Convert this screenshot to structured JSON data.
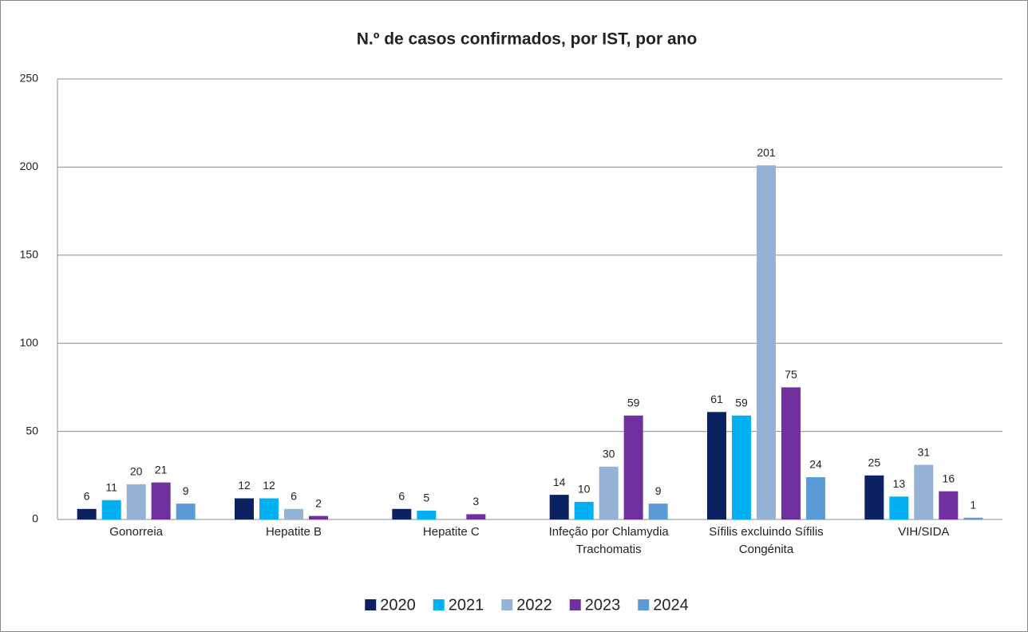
{
  "chart_data": {
    "type": "bar",
    "title": "N.º de casos confirmados, por IST, por ano",
    "categories": [
      "Gonorreia",
      "Hepatite B",
      "Hepatite C",
      "Infeção por Chlamydia Trachomatis",
      "Sífilis excluindo Sífilis Congénita",
      "VIH/SIDA"
    ],
    "series": [
      {
        "name": "2020",
        "color": "#0c2160",
        "values": [
          6,
          12,
          6,
          14,
          61,
          25
        ]
      },
      {
        "name": "2021",
        "color": "#00b0f0",
        "values": [
          11,
          12,
          5,
          10,
          59,
          13
        ]
      },
      {
        "name": "2022",
        "color": "#95b3d7",
        "values": [
          20,
          6,
          null,
          30,
          201,
          31
        ]
      },
      {
        "name": "2023",
        "color": "#7030a0",
        "values": [
          21,
          2,
          3,
          59,
          75,
          16
        ]
      },
      {
        "name": "2024",
        "color": "#5b9bd5",
        "values": [
          9,
          null,
          null,
          9,
          24,
          1
        ]
      }
    ],
    "ylim": [
      0,
      250
    ],
    "yticks": [
      0,
      50,
      100,
      150,
      200,
      250
    ],
    "grid": true,
    "legend": "bottom"
  }
}
